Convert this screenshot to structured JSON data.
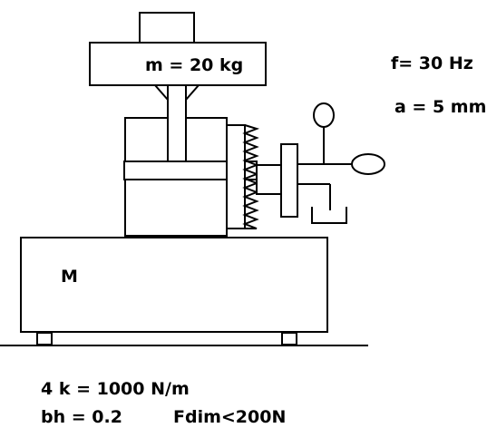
{
  "labels": {
    "upper_mass": "m = 20 kg",
    "base_mass": "M",
    "frequency": "f= 30 Hz",
    "amplitude": "a = 5 mm",
    "stiffness": "4 k = 1000 N/m",
    "damping": "bh = 0.2",
    "force_limit": "Fdim<200N"
  },
  "colors": {
    "line": "#000000",
    "fill": "#ffffff"
  }
}
